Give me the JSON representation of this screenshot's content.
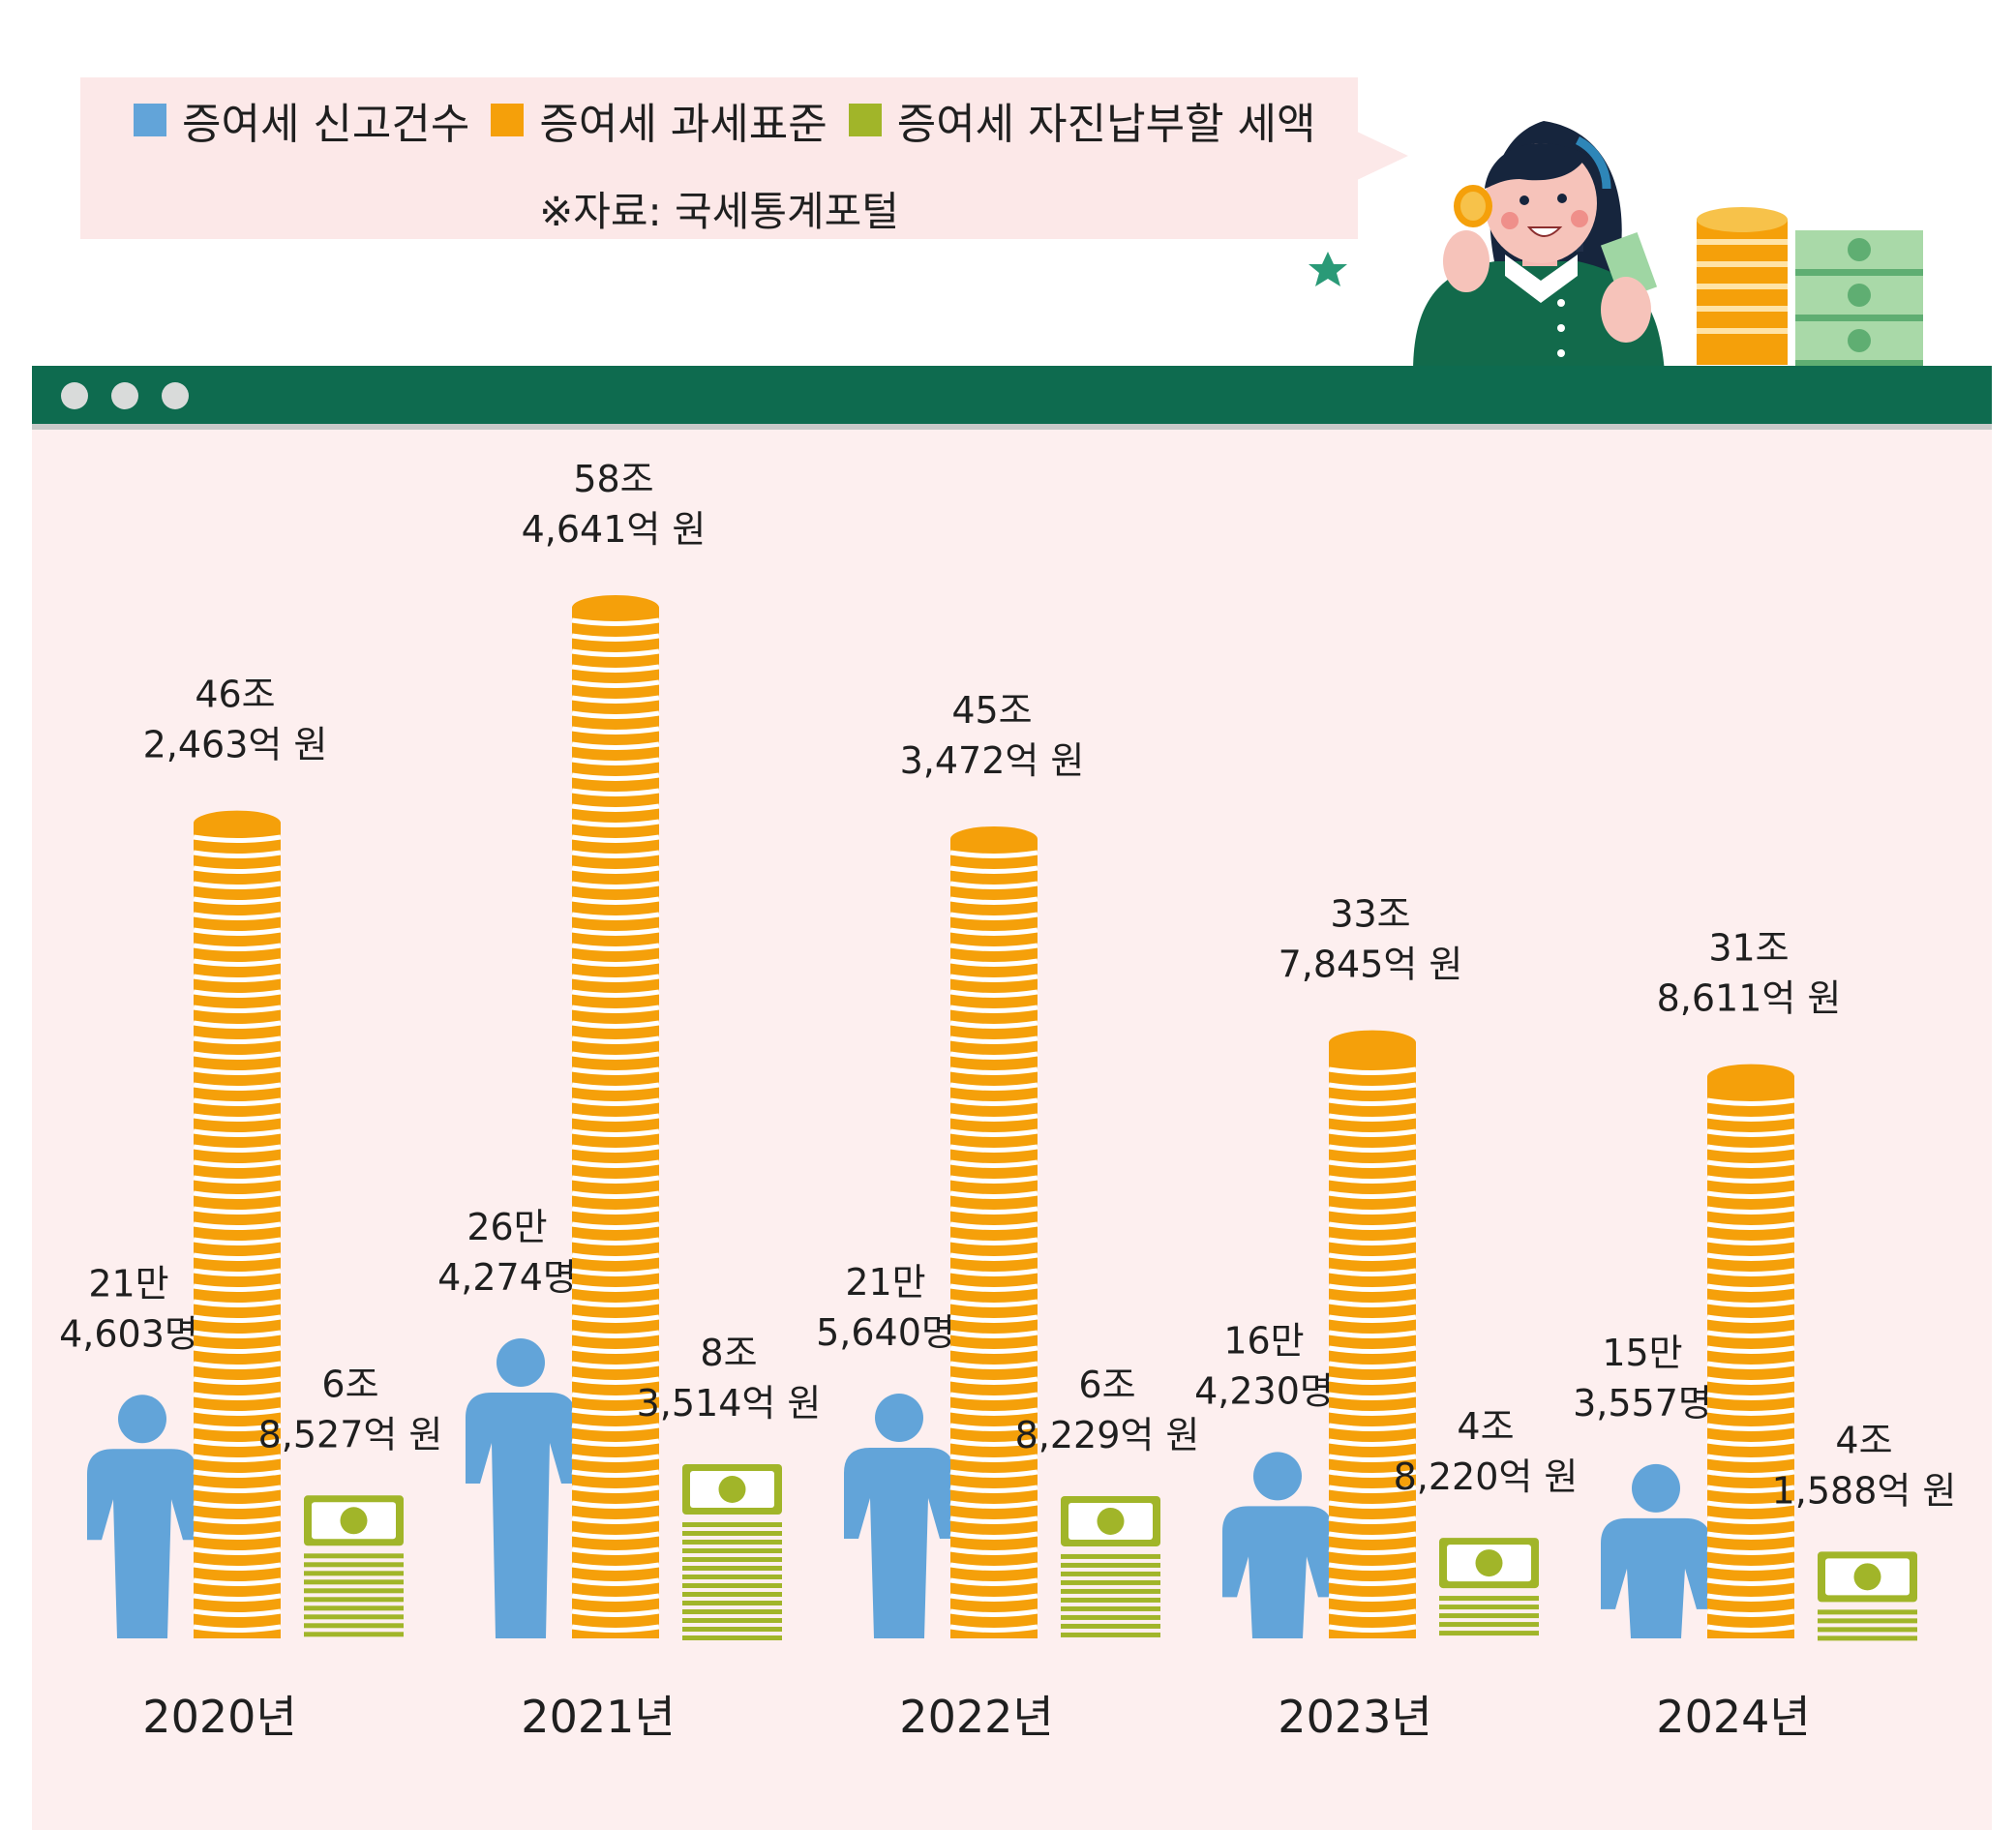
{
  "legend": {
    "items": [
      {
        "label": "증여세 신고건수",
        "color": "#62a4d9"
      },
      {
        "label": "증여세 과세표준",
        "color": "#f5a00a"
      },
      {
        "label": "증여세 자진납부할 세액",
        "color": "#a1b529"
      }
    ],
    "source": "※자료: 국세통계포털"
  },
  "chart_data": {
    "type": "bar",
    "categories": [
      "2020년",
      "2021년",
      "2022년",
      "2023년",
      "2024년"
    ],
    "series": [
      {
        "name": "증여세 신고건수",
        "unit": "명",
        "color": "#62a4d9",
        "values": [
          214603,
          264274,
          215640,
          164230,
          153557
        ],
        "labels": [
          [
            "21만",
            "4,603명"
          ],
          [
            "26만",
            "4,274명"
          ],
          [
            "21만",
            "5,640명"
          ],
          [
            "16만",
            "4,230명"
          ],
          [
            "15만",
            "3,557명"
          ]
        ]
      },
      {
        "name": "증여세 과세표준",
        "unit": "억 원",
        "color": "#f5a00a",
        "values": [
          462463,
          584641,
          453472,
          337845,
          318611
        ],
        "labels": [
          [
            "46조",
            "2,463억 원"
          ],
          [
            "58조",
            "4,641억 원"
          ],
          [
            "45조",
            "3,472억 원"
          ],
          [
            "33조",
            "7,845억 원"
          ],
          [
            "31조",
            "8,611억 원"
          ]
        ]
      },
      {
        "name": "증여세 자진납부할 세액",
        "unit": "억 원",
        "color": "#a1b529",
        "values": [
          68527,
          83514,
          68229,
          48220,
          41588
        ],
        "labels": [
          [
            "6조",
            "8,527억 원"
          ],
          [
            "8조",
            "3,514억 원"
          ],
          [
            "6조",
            "8,229억 원"
          ],
          [
            "4조",
            "8,220억 원"
          ],
          [
            "4조",
            "1,588억 원"
          ]
        ]
      }
    ]
  }
}
